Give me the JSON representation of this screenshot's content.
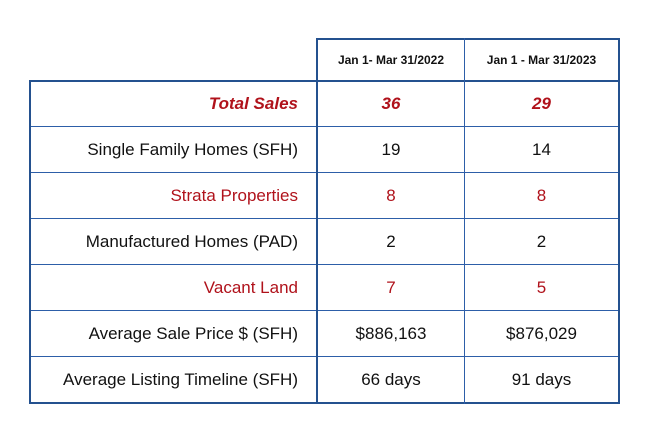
{
  "header": {
    "col1": "Jan 1- Mar 31/2022",
    "col2": "Jan 1 - Mar 31/2023"
  },
  "rows": [
    {
      "label": "Total Sales",
      "v2022": "36",
      "v2023": "29"
    },
    {
      "label": "Single Family Homes (SFH)",
      "v2022": "19",
      "v2023": "14"
    },
    {
      "label": "Strata Properties",
      "v2022": "8",
      "v2023": "8"
    },
    {
      "label": "Manufactured Homes (PAD)",
      "v2022": "2",
      "v2023": "2"
    },
    {
      "label": "Vacant Land",
      "v2022": "7",
      "v2023": "5"
    },
    {
      "label": "Average Sale Price $ (SFH)",
      "v2022": "$886,163",
      "v2023": "$876,029"
    },
    {
      "label": "Average Listing Timeline (SFH)",
      "v2022": "66 days",
      "v2023": "91 days"
    }
  ],
  "colors": {
    "highlight_text": "#b0121b",
    "border": "#2d5ea8"
  }
}
